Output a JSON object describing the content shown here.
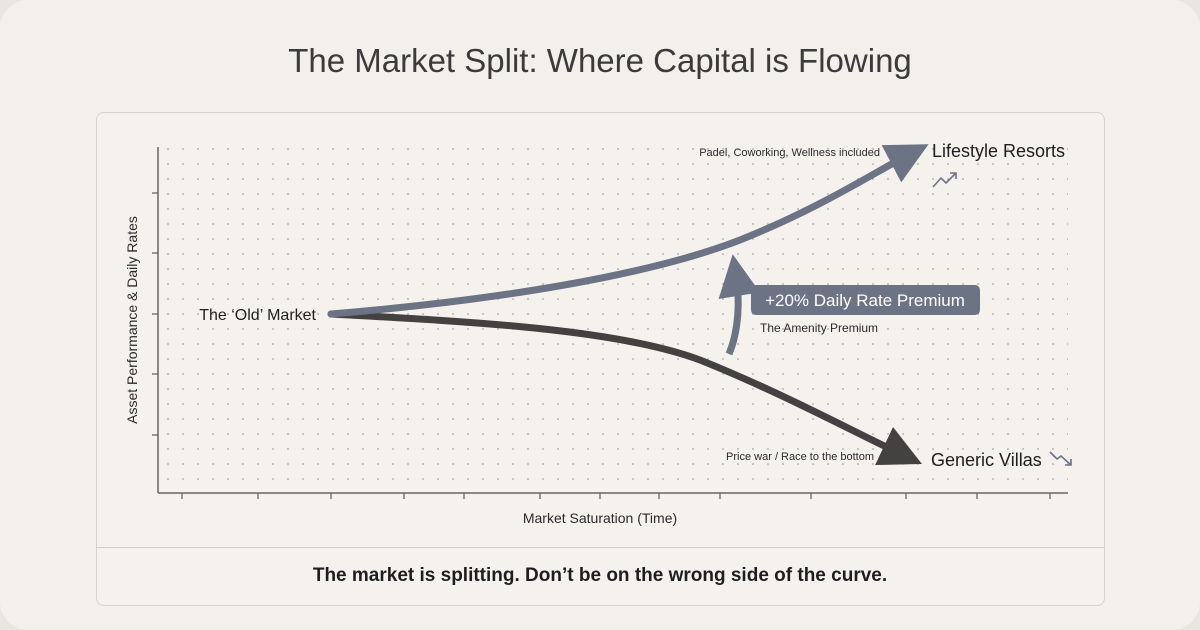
{
  "title": "The Market Split: Where Capital is Flowing",
  "axes": {
    "y_label": "Asset Performance & Daily Rates",
    "x_label": "Market Saturation (Time)"
  },
  "annotations": {
    "origin": "The ‘Old’ Market",
    "upper_label": "Lifestyle Resorts",
    "upper_note": "Padel, Coworking, Wellness included",
    "lower_label": "Generic Villas",
    "lower_note": "Price war / Race to the bottom",
    "premium_badge": "+20% Daily Rate Premium",
    "premium_caption": "The Amenity Premium"
  },
  "footer": "The market is splitting. Don’t be on the wrong side of the curve.",
  "colors": {
    "upper_curve": "#6b7384",
    "lower_curve": "#444141",
    "badge": "#6b7384"
  },
  "icons": {
    "upper": "trend-up-icon",
    "lower": "trend-down-icon"
  }
}
